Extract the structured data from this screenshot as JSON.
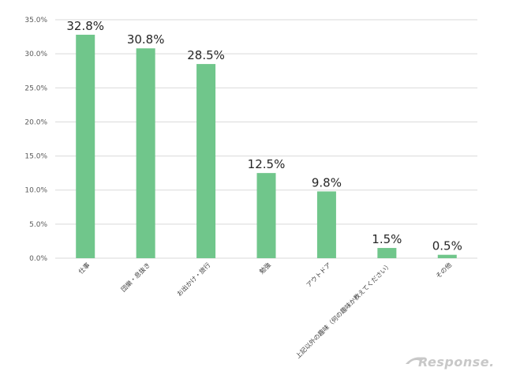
{
  "chart_data": {
    "type": "bar",
    "title": "",
    "xlabel": "",
    "ylabel": "",
    "categories": [
      "仕事",
      "団欒・息抜き",
      "お出かけ・旅行",
      "勉強",
      "アウトドア",
      "上記以外の趣味（何の趣味か教えてください）",
      "その他"
    ],
    "values": [
      32.8,
      30.8,
      28.5,
      12.5,
      9.8,
      1.5,
      0.5
    ],
    "value_labels": [
      "32.8%",
      "30.8%",
      "28.5%",
      "12.5%",
      "9.8%",
      "1.5%",
      "0.5%"
    ],
    "ylim": [
      0,
      35
    ],
    "yticks": [
      0,
      5,
      10,
      15,
      20,
      25,
      30,
      35
    ],
    "ytick_labels": [
      "0.0%",
      "5.0%",
      "10.0%",
      "15.0%",
      "20.0%",
      "25.0%",
      "30.0%",
      "35.0%"
    ],
    "grid": true,
    "bar_color": "#70c68b",
    "grid_color": "#d9d9d9"
  },
  "watermark": {
    "text": "Response."
  }
}
